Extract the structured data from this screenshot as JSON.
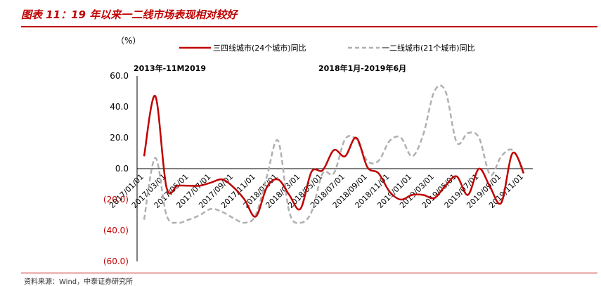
{
  "figure": {
    "title": "图表 11：19 年以来一二线市场表现相对较好",
    "source": "资料来源：Wind，中泰证券研究所"
  },
  "colors": {
    "accent": "#c00000",
    "series1": "#c00000",
    "series2": "#b0b0b0",
    "negative_tick": "#c00000"
  },
  "chart_data": {
    "type": "line",
    "unit_label": "（%）",
    "annotations": [
      "2013年-11M2019",
      "2018年1月-2019年6月"
    ],
    "ylim": [
      -60,
      60
    ],
    "yticks": [
      -60,
      -40,
      -20,
      0,
      20,
      40,
      60
    ],
    "ytick_labels": [
      "(60.0)",
      "(40.0)",
      "(20.0)",
      "0.0",
      "20.0",
      "40.0",
      "60.0"
    ],
    "x_tick_labels": [
      "2017/01/01",
      "2017/03/01",
      "2017/05/01",
      "2017/07/01",
      "2017/09/01",
      "2017/11/01",
      "2018/01/01",
      "2018/03/01",
      "2018/05/01",
      "2018/07/01",
      "2018/09/01",
      "2018/11/01",
      "2019/01/01",
      "2019/03/01",
      "2019/05/01",
      "2019/07/01",
      "2019/09/01",
      "2019/11/01"
    ],
    "x": [
      "2017/01",
      "2017/02",
      "2017/03",
      "2017/04",
      "2017/05",
      "2017/06",
      "2017/07",
      "2017/08",
      "2017/09",
      "2017/10",
      "2017/11",
      "2017/12",
      "2018/01",
      "2018/02",
      "2018/03",
      "2018/04",
      "2018/05",
      "2018/06",
      "2018/07",
      "2018/08",
      "2018/09",
      "2018/10",
      "2018/11",
      "2018/12",
      "2019/01",
      "2019/02",
      "2019/03",
      "2019/04",
      "2019/05",
      "2019/06",
      "2019/07",
      "2019/08",
      "2019/09",
      "2019/10",
      "2019/11"
    ],
    "series": [
      {
        "name": "三四线城市(24个城市)同比",
        "values": [
          8,
          47,
          -12,
          -11,
          -11,
          -11,
          -9,
          -7,
          -12,
          -20,
          -31,
          -12,
          -7,
          -17,
          -26,
          -2,
          -1,
          12,
          8,
          20,
          1,
          -3,
          -15,
          -20,
          -17,
          -17,
          -19,
          -11,
          -5,
          -17,
          0,
          -12,
          -22,
          10,
          -3
        ]
      },
      {
        "name": "一二线城市(21个城市)同比",
        "values": [
          -33,
          7,
          -30,
          -35,
          -33,
          -30,
          -26,
          -28,
          -32,
          -35,
          -30,
          -5,
          18,
          -28,
          -35,
          -28,
          -3,
          -3,
          19,
          19,
          5,
          5,
          18,
          20,
          8,
          22,
          50,
          50,
          17,
          23,
          20,
          -4,
          8,
          12,
          -1
        ]
      }
    ]
  }
}
